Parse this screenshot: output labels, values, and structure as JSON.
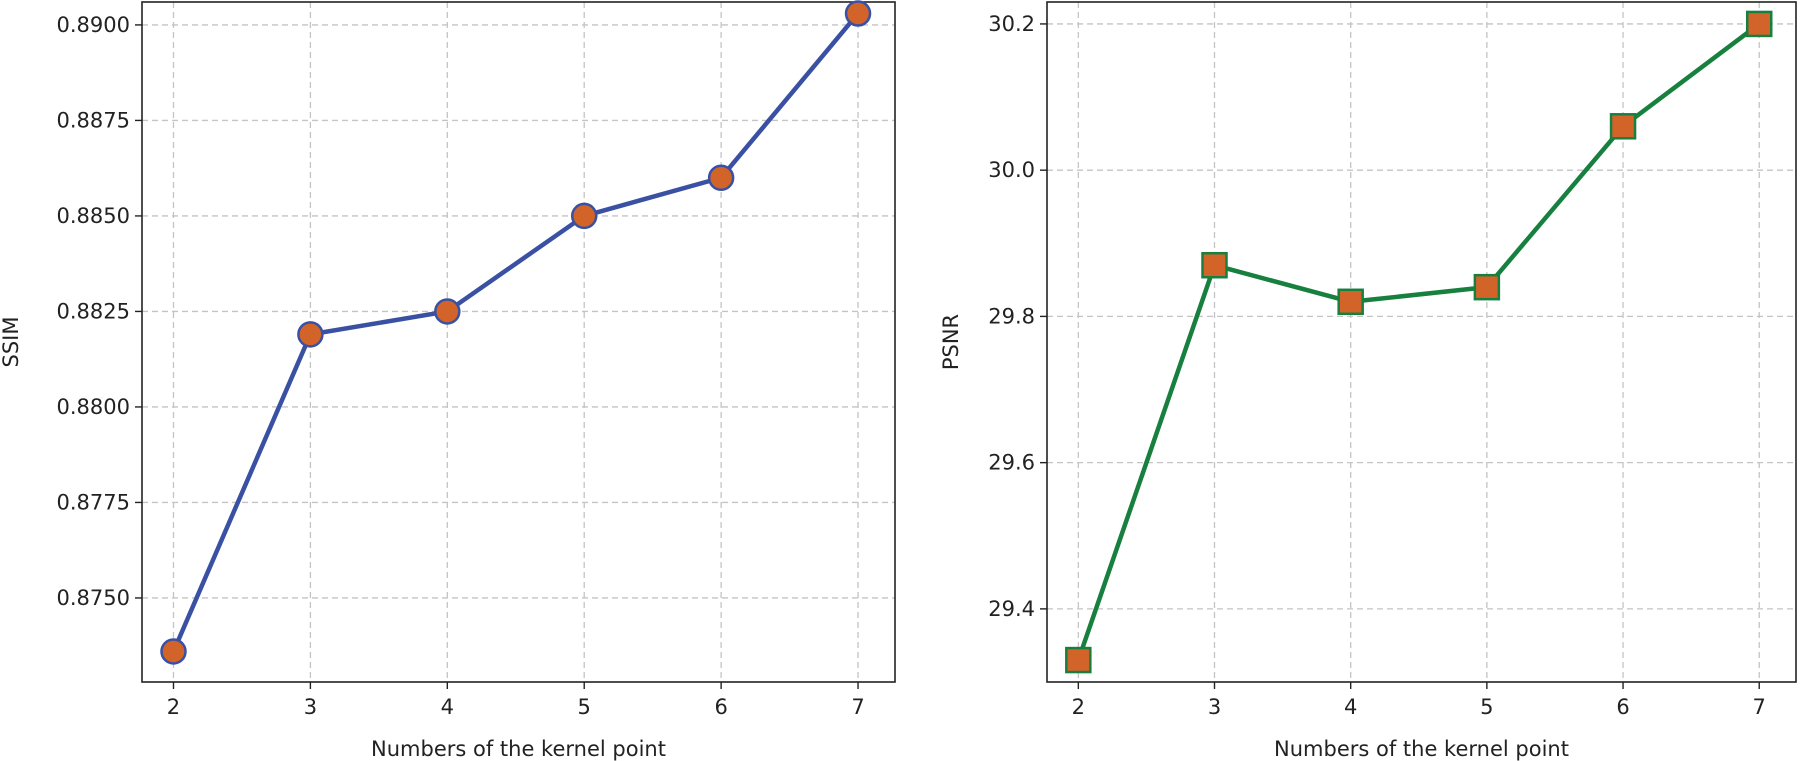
{
  "chart_data": [
    {
      "type": "line",
      "title": "",
      "xlabel": "Numbers of the kernel point",
      "ylabel": "SSIM",
      "x": [
        2,
        3,
        4,
        5,
        6,
        7
      ],
      "series": [
        {
          "name": "SSIM",
          "values": [
            0.8736,
            0.8819,
            0.8825,
            0.885,
            0.886,
            0.8903
          ]
        }
      ],
      "xlim": [
        1.77,
        7.27
      ],
      "ylim": [
        0.8728,
        0.8906
      ],
      "xticks": [
        "2",
        "3",
        "4",
        "5",
        "6",
        "7"
      ],
      "yticks": [
        "0.8750",
        "0.8775",
        "0.8800",
        "0.8825",
        "0.8850",
        "0.8875",
        "0.8900"
      ],
      "grid": true,
      "marker": "circle",
      "line_color": "#3a51a3",
      "marker_face": "#d2642a",
      "marker_edge": "#3a51a3"
    },
    {
      "type": "line",
      "title": "",
      "xlabel": "Numbers of the kernel point",
      "ylabel": "PSNR",
      "x": [
        2,
        3,
        4,
        5,
        6,
        7
      ],
      "series": [
        {
          "name": "PSNR",
          "values": [
            29.33,
            29.87,
            29.82,
            29.84,
            30.06,
            30.2
          ]
        }
      ],
      "xlim": [
        1.77,
        7.27
      ],
      "ylim": [
        29.3,
        30.23
      ],
      "xticks": [
        "2",
        "3",
        "4",
        "5",
        "6",
        "7"
      ],
      "yticks": [
        "29.4",
        "29.6",
        "29.8",
        "30.0",
        "30.2"
      ],
      "grid": true,
      "marker": "square",
      "line_color": "#17803f",
      "marker_face": "#d2642a",
      "marker_edge": "#17803f"
    }
  ]
}
